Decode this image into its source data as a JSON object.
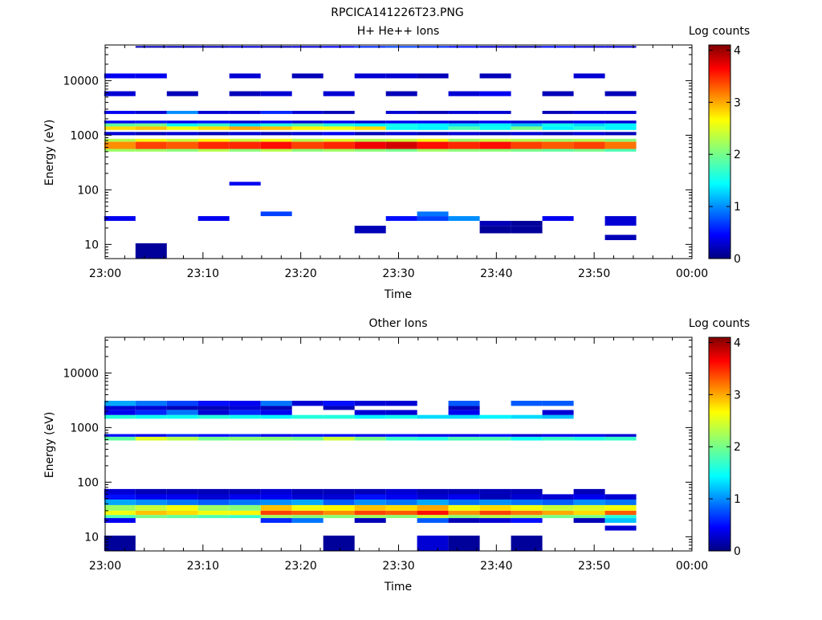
{
  "figure": {
    "title": "RPCICA141226T23.PNG"
  },
  "chart_data": [
    {
      "type": "heatmap",
      "title": "H+ He++ Ions",
      "xlabel": "Time",
      "ylabel": "Energy (eV)",
      "y_scale": "log",
      "ylim": [
        5.5,
        45000
      ],
      "x_range_minutes": [
        0,
        60
      ],
      "x_ticks": [
        "23:00",
        "23:10",
        "23:20",
        "23:30",
        "23:40",
        "23:50",
        "00:00"
      ],
      "y_ticks": [
        "10",
        "100",
        "1000",
        "10000"
      ],
      "colorbar": {
        "label": "Log counts",
        "range": [
          0,
          4.1
        ],
        "ticks": [
          "0",
          "1",
          "2",
          "3",
          "4"
        ]
      },
      "time_columns_minutes": [
        1.5,
        4.7,
        7.9,
        11.1,
        14.3,
        17.5,
        20.7,
        23.9,
        27.1,
        30.3,
        33.5,
        36.7,
        39.9,
        43.1,
        46.3,
        49.5,
        52.7
      ],
      "bands": [
        {
          "e_lo": 560,
          "e_hi": 760,
          "values": [
            3.1,
            3.4,
            3.3,
            3.5,
            3.5,
            3.6,
            3.4,
            3.5,
            3.7,
            3.8,
            3.6,
            3.5,
            3.6,
            3.4,
            3.3,
            3.4,
            3.2
          ]
        },
        {
          "e_lo": 760,
          "e_hi": 860,
          "values": [
            2.3,
            2.6,
            2.4,
            2.7,
            2.4,
            2.6,
            2.3,
            2.5,
            2.3,
            2.4,
            2.6,
            2.2,
            2.4,
            2.3,
            2.2,
            2.3,
            2.1
          ]
        },
        {
          "e_lo": 500,
          "e_hi": 560,
          "values": [
            2.2,
            2.2,
            2.1,
            2.3,
            2.1,
            2.3,
            2.1,
            2.2,
            2.1,
            2.0,
            2.2,
            2.1,
            2.1,
            2.0,
            1.9,
            2.0,
            1.8
          ]
        },
        {
          "e_lo": 1250,
          "e_hi": 1450,
          "values": [
            2.8,
            2.9,
            2.6,
            2.8,
            3.0,
            2.9,
            2.7,
            2.6,
            2.8,
            1.5,
            1.4,
            1.8,
            1.5,
            2.0,
            1.4,
            1.6,
            1.4
          ]
        },
        {
          "e_lo": 1450,
          "e_hi": 1650,
          "values": [
            1.9,
            2.0,
            1.5,
            1.7,
            1.3,
            1.6,
            1.8,
            1.6,
            1.4,
            1.5,
            1.4,
            1.3,
            1.4,
            1.2,
            1.5,
            1.3,
            1.4
          ]
        },
        {
          "e_lo": 1650,
          "e_hi": 1850,
          "values": [
            0.4,
            0.5,
            0.4,
            0.5,
            0.3,
            0.4,
            0.3,
            0.4,
            0.3,
            0.4,
            0.4,
            0.3,
            0.4,
            0.3,
            0.3,
            0.4,
            0.3
          ]
        },
        {
          "e_lo": 1000,
          "e_hi": 1150,
          "values": [
            0.3,
            0.2,
            0.3,
            0.2,
            0.3,
            0.2,
            0.3,
            0.4,
            0.2,
            0.3,
            0.2,
            0.3,
            0.2,
            0.3,
            0.2,
            0.3,
            0.2
          ]
        },
        {
          "e_lo": 2450,
          "e_hi": 2800,
          "values": [
            0.4,
            0.3,
            1.0,
            0.3,
            0.3,
            0.6,
            0.3,
            0.2,
            null,
            0.3,
            0.2,
            0.3,
            0.3,
            null,
            0.2,
            0.3,
            0.3
          ]
        },
        {
          "e_lo": 40000,
          "e_hi": 43000,
          "values": [
            null,
            0.2,
            0.2,
            0.2,
            0.3,
            0.2,
            0.3,
            0.4,
            0.6,
            0.7,
            0.6,
            0.5,
            0.3,
            0.2,
            0.5,
            0.3,
            0.3
          ]
        },
        {
          "e_lo": 11000,
          "e_hi": 13500,
          "values": [
            0.4,
            0.4,
            null,
            null,
            0.3,
            null,
            0.2,
            null,
            0.3,
            0.3,
            0.2,
            null,
            0.2,
            null,
            null,
            0.3,
            null
          ]
        },
        {
          "e_lo": 5200,
          "e_hi": 6400,
          "values": [
            0.3,
            null,
            0.2,
            null,
            0.2,
            0.3,
            null,
            0.3,
            null,
            0.2,
            null,
            0.3,
            0.4,
            null,
            0.2,
            null,
            0.2
          ]
        },
        {
          "e_lo": 120,
          "e_hi": 140,
          "values": [
            null,
            null,
            null,
            null,
            0.4,
            null,
            null,
            null,
            null,
            null,
            null,
            null,
            null,
            null,
            null,
            null,
            null
          ]
        },
        {
          "e_lo": 33,
          "e_hi": 40,
          "values": [
            null,
            null,
            null,
            null,
            null,
            0.7,
            null,
            null,
            null,
            null,
            0.9,
            null,
            null,
            null,
            null,
            null,
            null
          ]
        },
        {
          "e_lo": 27,
          "e_hi": 33,
          "values": [
            0.4,
            null,
            null,
            0.4,
            null,
            null,
            null,
            null,
            null,
            0.5,
            0.7,
            1.0,
            null,
            null,
            0.4,
            null,
            0.3
          ]
        },
        {
          "e_lo": 22,
          "e_hi": 27,
          "values": [
            null,
            null,
            null,
            null,
            null,
            null,
            null,
            null,
            null,
            null,
            null,
            null,
            0.2,
            0.1,
            null,
            null,
            0.3
          ]
        },
        {
          "e_lo": 16,
          "e_hi": 22,
          "values": [
            null,
            null,
            null,
            null,
            null,
            null,
            null,
            null,
            0.2,
            null,
            null,
            null,
            0.1,
            0.1,
            null,
            null,
            null
          ]
        },
        {
          "e_lo": 12,
          "e_hi": 15,
          "values": [
            null,
            null,
            null,
            null,
            null,
            null,
            null,
            null,
            null,
            null,
            null,
            null,
            null,
            null,
            null,
            null,
            0.2
          ]
        },
        {
          "e_lo": 5.5,
          "e_hi": 10.5,
          "values": [
            null,
            0.1,
            null,
            null,
            null,
            null,
            null,
            null,
            null,
            null,
            null,
            null,
            null,
            null,
            null,
            null,
            null
          ]
        }
      ]
    },
    {
      "type": "heatmap",
      "title": "Other Ions",
      "xlabel": "Time",
      "ylabel": "Energy (eV)",
      "y_scale": "log",
      "ylim": [
        5.5,
        45000
      ],
      "x_range_minutes": [
        0,
        60
      ],
      "x_ticks": [
        "23:00",
        "23:10",
        "23:20",
        "23:30",
        "23:40",
        "23:50",
        "00:00"
      ],
      "y_ticks": [
        "10",
        "100",
        "1000",
        "10000"
      ],
      "colorbar": {
        "label": "Log counts",
        "range": [
          0,
          4.1
        ],
        "ticks": [
          "0",
          "1",
          "2",
          "3",
          "4"
        ]
      },
      "time_columns_minutes": [
        1.5,
        4.7,
        7.9,
        11.1,
        14.3,
        17.5,
        20.7,
        23.9,
        27.1,
        30.3,
        33.5,
        36.7,
        39.9,
        43.1,
        46.3,
        49.5,
        52.7
      ],
      "bands": [
        {
          "e_lo": 25,
          "e_hi": 30,
          "values": [
            2.6,
            2.9,
            2.8,
            2.6,
            2.7,
            3.4,
            3.3,
            3.1,
            3.4,
            3.3,
            3.6,
            3.1,
            3.4,
            3.2,
            3.0,
            2.8,
            3.3
          ]
        },
        {
          "e_lo": 30,
          "e_hi": 38,
          "values": [
            2.2,
            2.4,
            2.6,
            2.2,
            2.1,
            2.9,
            2.6,
            2.7,
            2.9,
            2.8,
            3.0,
            2.6,
            2.8,
            2.6,
            2.4,
            2.5,
            2.6
          ]
        },
        {
          "e_lo": 22,
          "e_hi": 25,
          "values": [
            1.8,
            2.0,
            1.9,
            1.8,
            1.7,
            2.2,
            2.1,
            2.1,
            2.2,
            2.1,
            2.4,
            2.1,
            2.3,
            2.2,
            2.0,
            2.0,
            1.6
          ]
        },
        {
          "e_lo": 38,
          "e_hi": 48,
          "values": [
            1.1,
            1.0,
            0.9,
            0.8,
            0.9,
            1.0,
            1.1,
            0.8,
            1.0,
            0.9,
            1.1,
            0.9,
            1.0,
            0.9,
            0.8,
            1.0,
            0.9
          ]
        },
        {
          "e_lo": 48,
          "e_hi": 60,
          "values": [
            0.5,
            0.4,
            0.4,
            0.3,
            0.4,
            0.4,
            0.3,
            0.3,
            0.5,
            0.4,
            0.3,
            0.4,
            0.2,
            0.3,
            0.3,
            0.4,
            0.3
          ]
        },
        {
          "e_lo": 60,
          "e_hi": 75,
          "values": [
            0.3,
            0.2,
            0.2,
            0.2,
            0.2,
            0.3,
            0.2,
            0.2,
            0.2,
            0.3,
            0.2,
            0.2,
            0.2,
            0.2,
            null,
            0.2,
            null
          ]
        },
        {
          "e_lo": 18,
          "e_hi": 22,
          "values": [
            0.4,
            null,
            null,
            null,
            null,
            0.6,
            0.9,
            null,
            0.2,
            null,
            0.8,
            0.2,
            0.3,
            0.5,
            null,
            0.2,
            1.2
          ]
        },
        {
          "e_lo": 13,
          "e_hi": 16,
          "values": [
            null,
            null,
            null,
            null,
            null,
            null,
            null,
            null,
            null,
            null,
            null,
            null,
            null,
            null,
            null,
            null,
            0.3
          ]
        },
        {
          "e_lo": 5.5,
          "e_hi": 10.5,
          "values": [
            0.1,
            null,
            null,
            null,
            null,
            null,
            null,
            0.1,
            null,
            null,
            0.3,
            0.1,
            null,
            0.1,
            null,
            null,
            null
          ]
        },
        {
          "e_lo": 580,
          "e_hi": 680,
          "values": [
            1.9,
            2.5,
            2.3,
            2.0,
            2.1,
            2.1,
            2.0,
            2.4,
            2.0,
            1.7,
            1.6,
            1.8,
            1.8,
            1.5,
            1.7,
            1.6,
            1.7
          ]
        },
        {
          "e_lo": 680,
          "e_hi": 760,
          "values": [
            0.5,
            0.4,
            0.6,
            0.5,
            0.6,
            0.4,
            0.5,
            0.5,
            0.4,
            0.5,
            0.4,
            0.4,
            0.5,
            0.3,
            0.4,
            0.4,
            0.3
          ]
        },
        {
          "e_lo": 1450,
          "e_hi": 1700,
          "values": [
            1.6,
            1.5,
            1.5,
            1.6,
            1.5,
            1.4,
            1.6,
            1.6,
            1.4,
            1.5,
            1.3,
            1.3,
            1.4,
            1.3,
            1.2,
            null,
            null
          ]
        },
        {
          "e_lo": 1700,
          "e_hi": 2100,
          "values": [
            0.4,
            0.6,
            0.9,
            0.3,
            0.6,
            0.4,
            null,
            null,
            0.3,
            0.3,
            null,
            0.4,
            null,
            null,
            0.3,
            null,
            null
          ]
        },
        {
          "e_lo": 2100,
          "e_hi": 2500,
          "values": [
            0.3,
            0.3,
            0.2,
            0.2,
            0.3,
            0.2,
            null,
            0.2,
            null,
            null,
            null,
            0.2,
            null,
            null,
            null,
            null,
            null
          ]
        },
        {
          "e_lo": 2500,
          "e_hi": 3100,
          "values": [
            1.1,
            0.9,
            0.7,
            0.5,
            0.4,
            0.9,
            0.3,
            0.5,
            0.3,
            0.3,
            null,
            0.8,
            null,
            0.8,
            0.8,
            null,
            null
          ]
        }
      ]
    }
  ]
}
